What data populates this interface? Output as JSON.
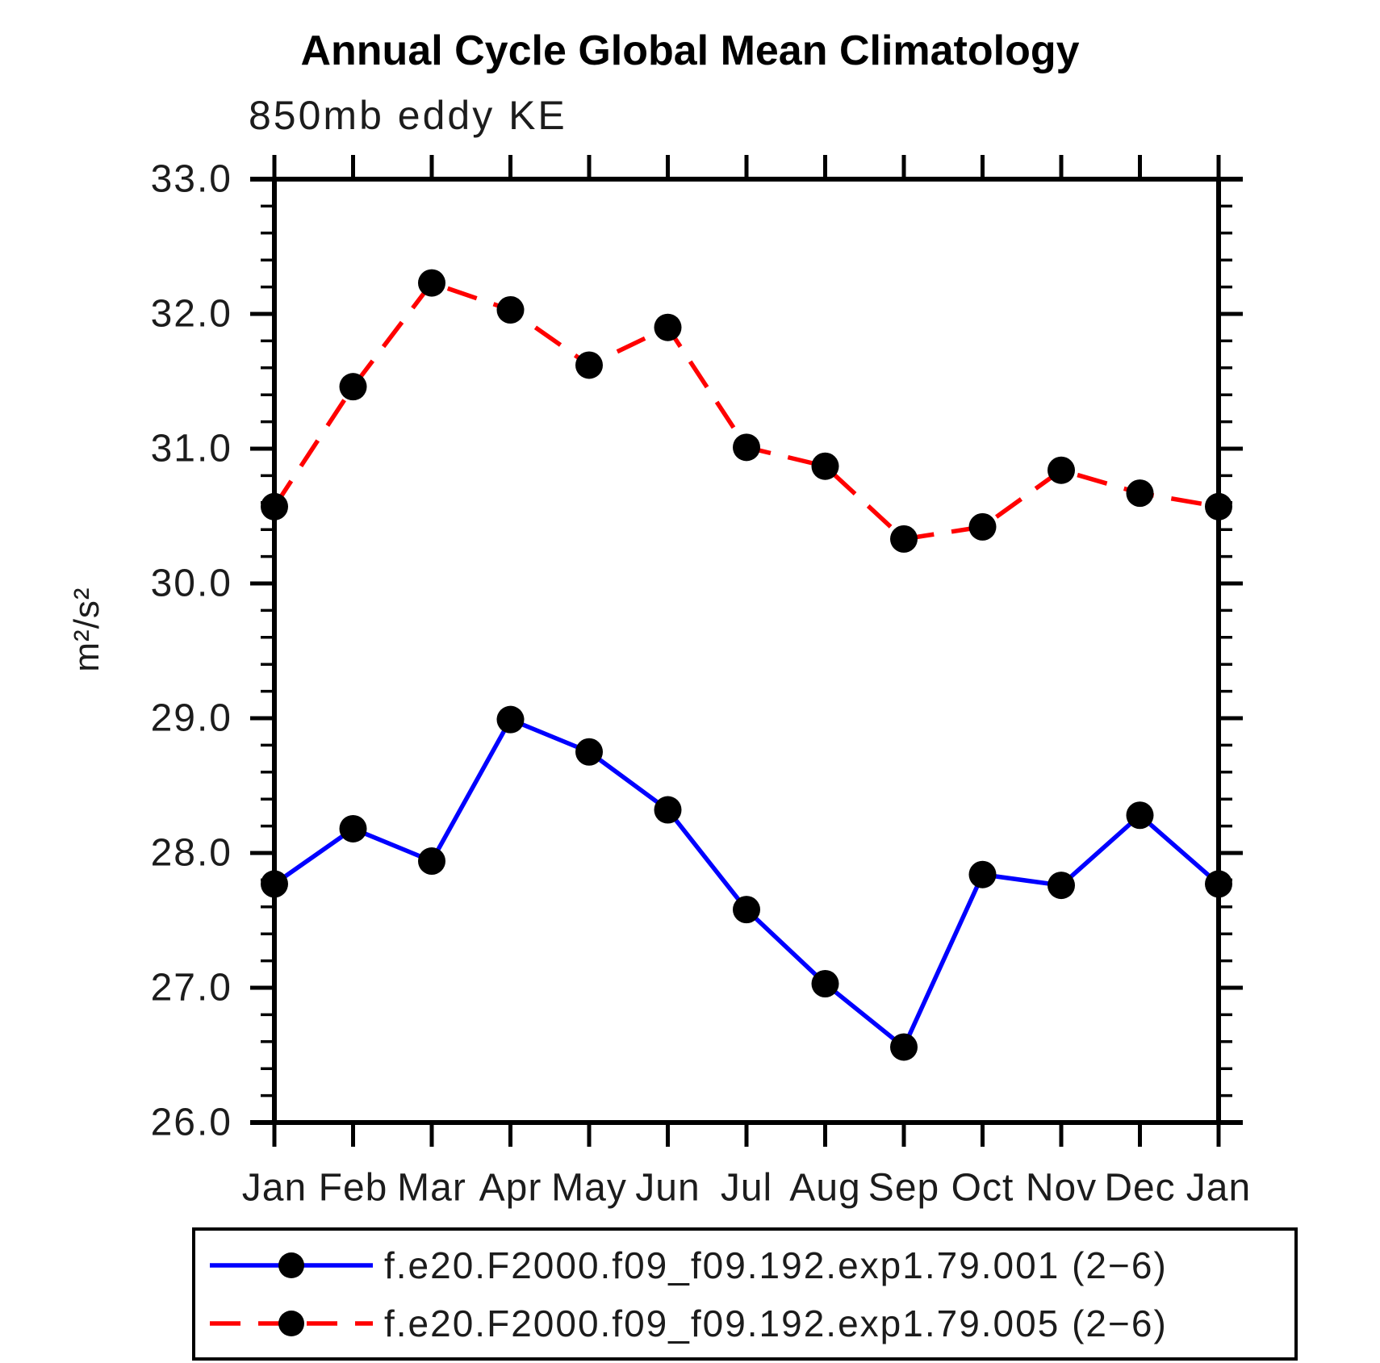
{
  "title": "Annual Cycle Global Mean Climatology",
  "chart_data": {
    "type": "line",
    "title": "Annual Cycle Global Mean Climatology",
    "subtitle": "850mb eddy KE",
    "ylabel": "m²/s²",
    "xlabel": "",
    "categories": [
      "Jan",
      "Feb",
      "Mar",
      "Apr",
      "May",
      "Jun",
      "Jul",
      "Aug",
      "Sep",
      "Oct",
      "Nov",
      "Dec",
      "Jan"
    ],
    "ylim": [
      26.0,
      33.0
    ],
    "ytick_step": 1.0,
    "ytick_minor_step": 0.2,
    "ytick_labels": [
      "26.0",
      "27.0",
      "28.0",
      "29.0",
      "30.0",
      "31.0",
      "32.0",
      "33.0"
    ],
    "grid": false,
    "legend_position": "bottom",
    "axis_color": "#000000",
    "marker": "filled-circle",
    "marker_color": "#000000",
    "series": [
      {
        "name": "f.e20.F2000.f09_f09.192.exp1.79.001 (2−6)",
        "color": "#0000ff",
        "line_style": "solid",
        "values": [
          27.77,
          28.18,
          27.94,
          28.99,
          28.75,
          28.32,
          27.58,
          27.03,
          26.56,
          27.84,
          27.76,
          28.28,
          27.77
        ]
      },
      {
        "name": "f.e20.F2000.f09_f09.192.exp1.79.005 (2−6)",
        "color": "#ff0000",
        "line_style": "dashed",
        "values": [
          30.57,
          31.46,
          32.23,
          32.03,
          31.62,
          31.9,
          31.01,
          30.87,
          30.33,
          30.42,
          30.84,
          30.67,
          30.57
        ]
      }
    ]
  }
}
